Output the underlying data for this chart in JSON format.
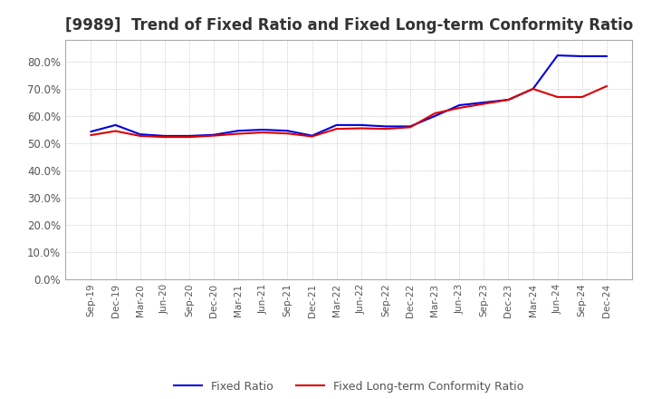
{
  "title": "[9989]  Trend of Fixed Ratio and Fixed Long-term Conformity Ratio",
  "title_fontsize": 12,
  "x_labels": [
    "Sep-19",
    "Dec-19",
    "Mar-20",
    "Jun-20",
    "Sep-20",
    "Dec-20",
    "Mar-21",
    "Jun-21",
    "Sep-21",
    "Dec-21",
    "Mar-22",
    "Jun-22",
    "Sep-22",
    "Dec-22",
    "Mar-23",
    "Jun-23",
    "Sep-23",
    "Dec-23",
    "Mar-24",
    "Jun-24",
    "Sep-24",
    "Dec-24"
  ],
  "fixed_ratio": [
    0.543,
    0.567,
    0.533,
    0.527,
    0.527,
    0.531,
    0.546,
    0.55,
    0.546,
    0.528,
    0.567,
    0.567,
    0.562,
    0.562,
    0.6,
    0.64,
    0.65,
    0.66,
    0.7,
    0.823,
    0.82,
    0.82
  ],
  "fixed_lt_ratio": [
    0.53,
    0.545,
    0.527,
    0.523,
    0.523,
    0.528,
    0.535,
    0.54,
    0.536,
    0.525,
    0.553,
    0.555,
    0.553,
    0.559,
    0.61,
    0.63,
    0.645,
    0.66,
    0.7,
    0.67,
    0.67,
    0.71
  ],
  "fixed_ratio_color": "#0000dd",
  "fixed_lt_ratio_color": "#dd0000",
  "ylim": [
    0.0,
    0.88
  ],
  "yticks": [
    0.0,
    0.1,
    0.2,
    0.3,
    0.4,
    0.5,
    0.6,
    0.7,
    0.8
  ],
  "background_color": "#ffffff",
  "plot_bg_color": "#ffffff",
  "grid_color": "#aaaaaa",
  "line_width": 1.5,
  "legend_fixed": "Fixed Ratio",
  "legend_fixed_lt": "Fixed Long-term Conformity Ratio",
  "spine_color": "#aaaaaa",
  "tick_label_color": "#555555",
  "title_color": "#333333"
}
